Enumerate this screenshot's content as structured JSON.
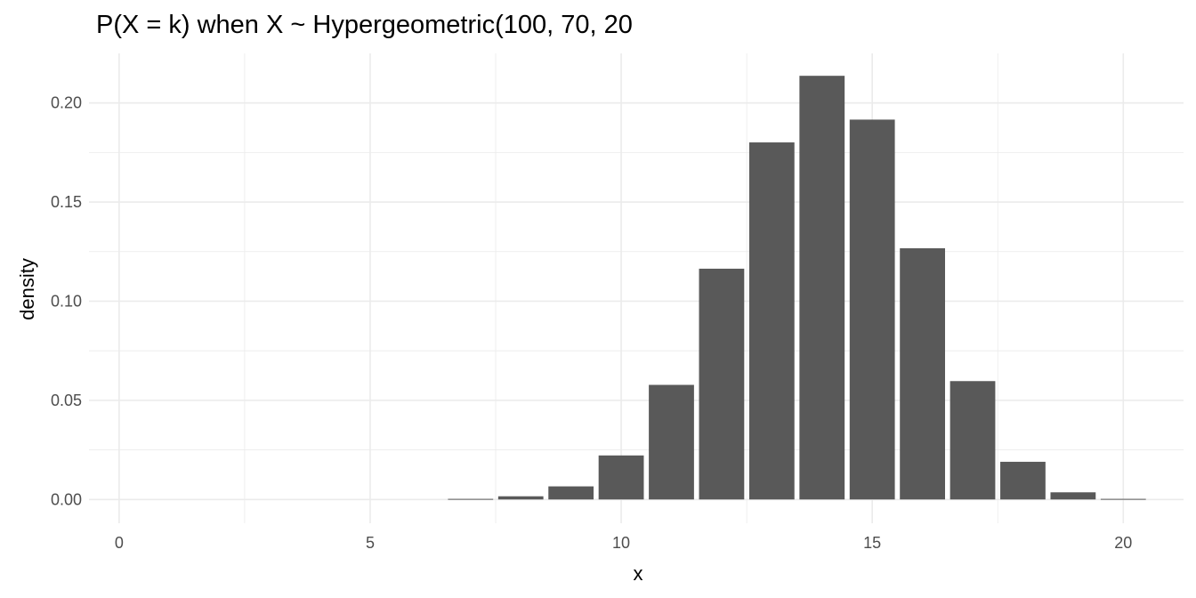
{
  "chart_data": {
    "type": "bar",
    "title": "P(X = k) when X ~ Hypergeometric(100, 70, 20",
    "xlabel": "x",
    "ylabel": "density",
    "x": [
      0,
      1,
      2,
      3,
      4,
      5,
      6,
      7,
      8,
      9,
      10,
      11,
      12,
      13,
      14,
      15,
      16,
      17,
      18,
      19,
      20
    ],
    "values": [
      0,
      0,
      0,
      0,
      0,
      0,
      0,
      0.0003,
      0.0016,
      0.0066,
      0.0222,
      0.0578,
      0.1164,
      0.1801,
      0.2137,
      0.1916,
      0.1267,
      0.0597,
      0.019,
      0.0036,
      0.0003
    ],
    "xlim": [
      -0.6,
      21.2
    ],
    "ylim": [
      -0.012,
      0.225
    ],
    "x_ticks": [
      "0",
      "5",
      "10",
      "15",
      "20"
    ],
    "y_ticks": [
      "0.00",
      "0.05",
      "0.10",
      "0.15",
      "0.20"
    ],
    "grid": true,
    "bar_color": "#595959",
    "grid_color": "#ebebeb"
  }
}
